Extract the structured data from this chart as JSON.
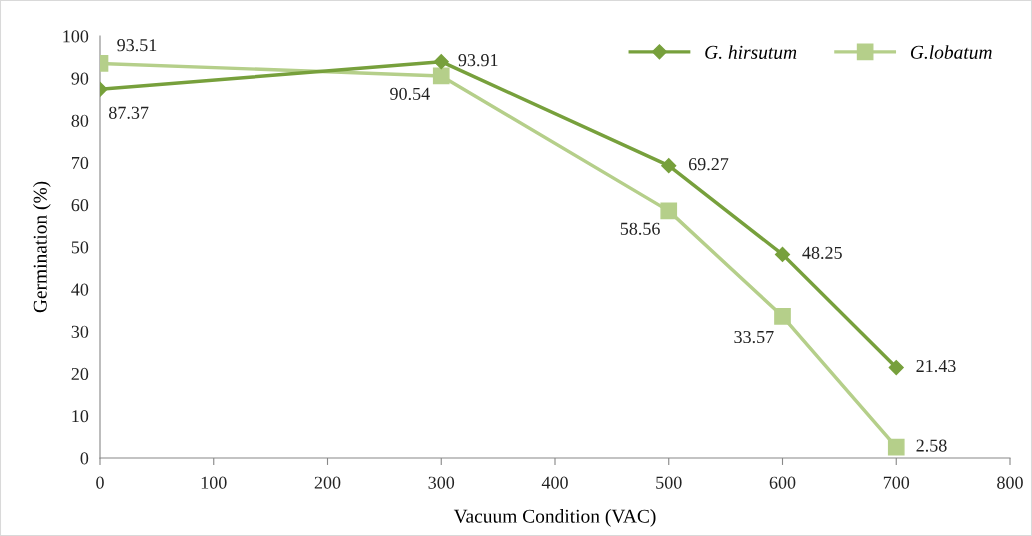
{
  "chart_data": {
    "type": "line",
    "xlabel": "Vacuum Condition (VAC)",
    "ylabel": "Germination (%)",
    "x": [
      0,
      300,
      500,
      600,
      700
    ],
    "series": [
      {
        "name": "G. hirsutum",
        "color": "#77a03c",
        "marker": "diamond",
        "values": [
          87.37,
          93.91,
          69.27,
          48.25,
          21.43
        ]
      },
      {
        "name": "G.lobatum",
        "color": "#b5cf8a",
        "marker": "square",
        "values": [
          93.51,
          90.54,
          58.56,
          33.57,
          2.58
        ]
      }
    ],
    "xlim": [
      0,
      800
    ],
    "xticks": [
      0,
      100,
      200,
      300,
      400,
      500,
      600,
      700,
      800
    ],
    "ylim": [
      0,
      100
    ],
    "yticks": [
      0,
      10,
      20,
      30,
      40,
      50,
      60,
      70,
      80,
      90,
      100
    ],
    "grid": false,
    "legend": "top right",
    "data_labels": true,
    "line_style": "solid"
  }
}
